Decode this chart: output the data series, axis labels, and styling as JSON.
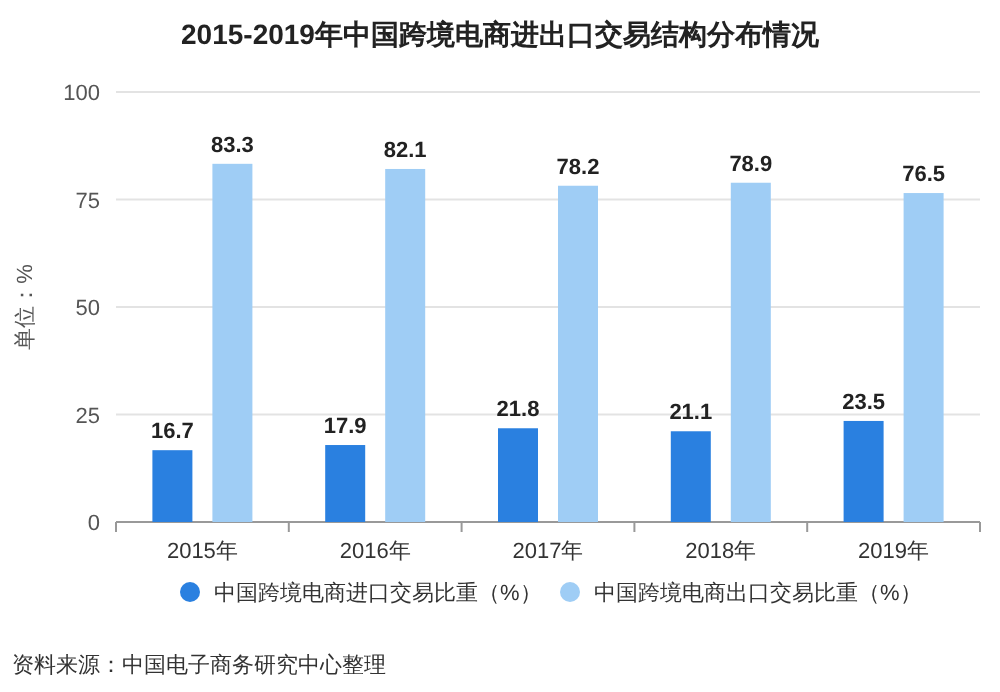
{
  "chart_data": {
    "type": "bar",
    "title": "2015-2019年中国跨境电商进出口交易结构分布情况",
    "ylabel": "单位：%",
    "categories": [
      "2015年",
      "2016年",
      "2017年",
      "2018年",
      "2019年"
    ],
    "series": [
      {
        "name": "中国跨境电商进口交易比重（%）",
        "color": "#2a80e0",
        "values": [
          16.7,
          17.9,
          21.8,
          21.1,
          23.5
        ]
      },
      {
        "name": "中国跨境电商出口交易比重（%）",
        "color": "#9fcdf5",
        "values": [
          83.3,
          82.1,
          78.2,
          78.9,
          76.5
        ]
      }
    ],
    "ylim": [
      0,
      100
    ],
    "yticks": [
      0,
      25,
      50,
      75,
      100
    ],
    "grid": "y",
    "legend": "bottom",
    "data_labels": true,
    "annotations": [
      "资料来源：中国电子商务研究中心整理"
    ]
  }
}
